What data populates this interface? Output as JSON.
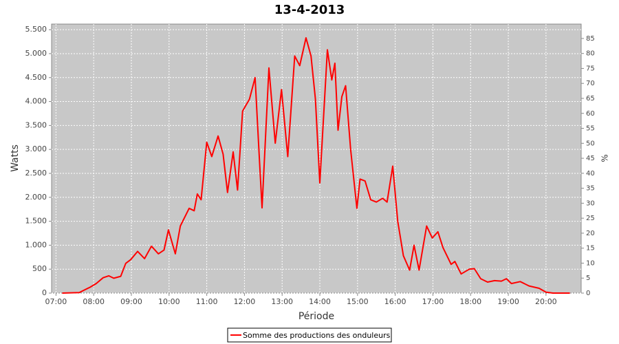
{
  "chart_data": {
    "type": "line",
    "title": "13-4-2013",
    "x_label": "Période",
    "y_label": "Watts",
    "y2_label": "%",
    "x": [
      "07:10",
      "07:37",
      "07:43",
      "07:54",
      "08:04",
      "08:15",
      "08:24",
      "08:32",
      "08:43",
      "08:51",
      "08:59",
      "09:10",
      "09:21",
      "09:32",
      "09:43",
      "09:52",
      "09:59",
      "10:10",
      "10:18",
      "10:32",
      "10:40",
      "10:45",
      "10:51",
      "11:00",
      "11:08",
      "11:18",
      "11:26",
      "11:33",
      "11:42",
      "11:49",
      "11:57",
      "12:08",
      "12:17",
      "12:23",
      "12:28",
      "12:39",
      "12:49",
      "12:59",
      "13:09",
      "13:20",
      "13:28",
      "13:38",
      "13:46",
      "13:53",
      "14:00",
      "14:12",
      "14:19",
      "14:24",
      "14:29",
      "14:35",
      "14:41",
      "14:49",
      "14:59",
      "15:04",
      "15:12",
      "15:21",
      "15:30",
      "15:40",
      "15:47",
      "15:56",
      "16:04",
      "16:13",
      "16:23",
      "16:30",
      "16:38",
      "16:50",
      "16:59",
      "17:08",
      "17:16",
      "17:29",
      "17:35",
      "17:45",
      "17:58",
      "18:06",
      "18:16",
      "18:27",
      "18:38",
      "18:49",
      "18:57",
      "19:05",
      "19:19",
      "19:33",
      "19:49",
      "20:00",
      "20:11",
      "20:38"
    ],
    "series": [
      {
        "name": "Somme des productions des onduleurs",
        "color": "#ff0000",
        "values": [
          0,
          10,
          50,
          120,
          200,
          320,
          360,
          310,
          350,
          620,
          700,
          870,
          720,
          980,
          820,
          900,
          1320,
          820,
          1400,
          1770,
          1720,
          2070,
          1950,
          3150,
          2850,
          3280,
          2900,
          2100,
          2950,
          2150,
          3800,
          4050,
          4500,
          3000,
          1780,
          4700,
          3130,
          4250,
          2850,
          4950,
          4750,
          5330,
          4950,
          4050,
          2300,
          5080,
          4450,
          4800,
          3400,
          4100,
          4330,
          3000,
          1770,
          2380,
          2340,
          1950,
          1900,
          1980,
          1900,
          2650,
          1500,
          780,
          480,
          1000,
          480,
          1400,
          1150,
          1280,
          950,
          600,
          660,
          400,
          500,
          510,
          300,
          230,
          260,
          250,
          300,
          200,
          240,
          150,
          100,
          20,
          0,
          0
        ]
      }
    ],
    "xlim": [
      "06:53",
      "20:56"
    ],
    "xticks": [
      "07:00",
      "08:00",
      "09:00",
      "10:00",
      "11:00",
      "12:00",
      "13:00",
      "14:00",
      "15:00",
      "16:00",
      "17:00",
      "18:00",
      "19:00",
      "20:00"
    ],
    "ylim": [
      0,
      5617
    ],
    "yticks": [
      0,
      {
        "value": 500,
        "label": "500"
      },
      {
        "value": 1000,
        "label": "1.000"
      },
      {
        "value": 1500,
        "label": "1.500"
      },
      {
        "value": 2000,
        "label": "2.000"
      },
      {
        "value": 2500,
        "label": "2.500"
      },
      {
        "value": 3000,
        "label": "3.000"
      },
      {
        "value": 3500,
        "label": "3.500"
      },
      {
        "value": 4000,
        "label": "4.000"
      },
      {
        "value": 4500,
        "label": "4.500"
      },
      {
        "value": 5000,
        "label": "5.000"
      },
      {
        "value": 5500,
        "label": "5.500"
      }
    ],
    "y2lim": [
      0,
      89.8
    ],
    "y2ticks": [
      0,
      5,
      10,
      15,
      20,
      25,
      30,
      35,
      40,
      45,
      50,
      55,
      60,
      65,
      70,
      75,
      80,
      85
    ],
    "grid": true
  }
}
